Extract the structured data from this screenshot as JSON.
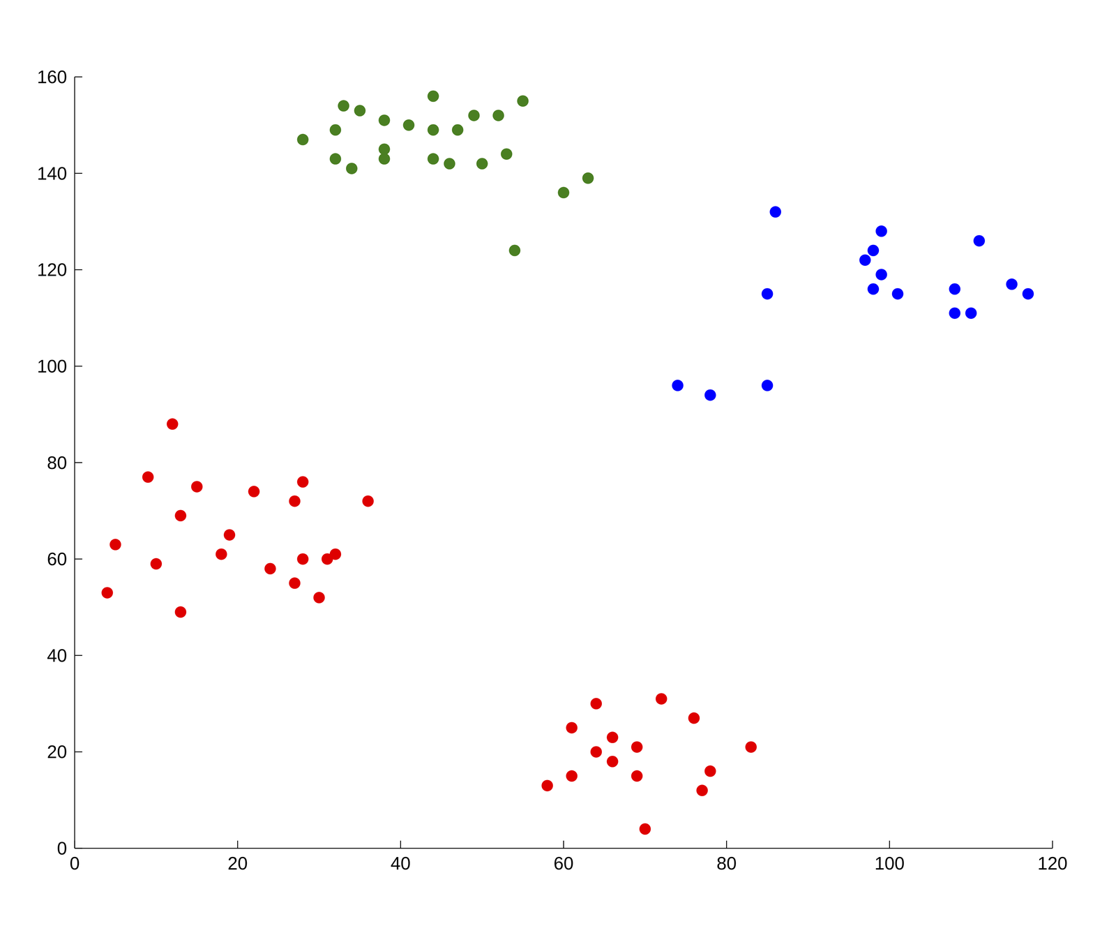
{
  "chart_data": {
    "type": "scatter",
    "xlim": [
      0,
      120
    ],
    "xticks": [
      0,
      20,
      40,
      60,
      80,
      100,
      120
    ],
    "ylim": [
      0,
      160
    ],
    "yticks": [
      0,
      20,
      40,
      60,
      80,
      100,
      120,
      140,
      160
    ],
    "grid": false,
    "marker": "circle",
    "series": [
      {
        "color": "#4a7f22",
        "x": [
          28,
          32,
          32,
          33,
          34,
          35,
          38,
          38,
          38,
          41,
          44,
          44,
          44,
          46,
          47,
          49,
          50,
          52,
          53,
          55,
          60,
          63,
          54
        ],
        "values": [
          147,
          149,
          143,
          154,
          141,
          153,
          151,
          145,
          143,
          150,
          156,
          149,
          143,
          142,
          149,
          152,
          142,
          152,
          144,
          155,
          136,
          139,
          124
        ]
      },
      {
        "color": "#0000ff",
        "x": [
          86,
          97,
          98,
          99,
          99,
          98,
          101,
          85,
          108,
          108,
          110,
          111,
          115,
          117,
          74,
          78,
          85
        ],
        "values": [
          132,
          122,
          124,
          128,
          119,
          116,
          115,
          115,
          116,
          111,
          111,
          126,
          117,
          115,
          96,
          94,
          96
        ]
      },
      {
        "color": "#de0000",
        "x": [
          12,
          9,
          15,
          22,
          28,
          27,
          36,
          13,
          5,
          19,
          18,
          10,
          24,
          28,
          31,
          32,
          4,
          27,
          30,
          13,
          64,
          72,
          76,
          61,
          66,
          64,
          69,
          83,
          66,
          58,
          61,
          69,
          78,
          77,
          70
        ],
        "values": [
          88,
          77,
          75,
          74,
          76,
          72,
          72,
          69,
          63,
          65,
          61,
          59,
          58,
          60,
          60,
          61,
          53,
          55,
          52,
          49,
          30,
          31,
          27,
          25,
          23,
          20,
          21,
          21,
          18,
          13,
          15,
          15,
          16,
          12,
          4
        ]
      }
    ]
  }
}
